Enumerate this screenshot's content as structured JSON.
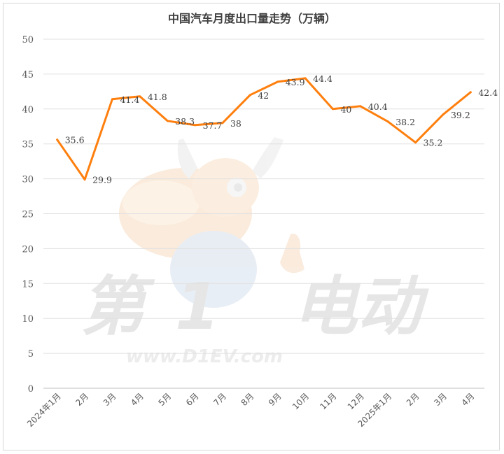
{
  "watermark": {
    "brand_chars": [
      "第",
      "1",
      "电动"
    ],
    "url": "www.D1EV.com"
  },
  "chart_data": {
    "type": "line",
    "title": "中国汽车月度出口量走势（万辆）",
    "categories": [
      "2024年1月",
      "2月",
      "3月",
      "4月",
      "5月",
      "6月",
      "7月",
      "8月",
      "9月",
      "10月",
      "11月",
      "12月",
      "2025年1月",
      "2月",
      "3月",
      "4月"
    ],
    "series": [
      {
        "values": [
          35.6,
          29.9,
          41.4,
          41.8,
          38.3,
          37.7,
          38,
          42,
          43.9,
          44.4,
          40,
          40.4,
          38.2,
          35.2,
          39.2,
          42.4
        ],
        "labels": [
          "35.6",
          "29.9",
          "41.4",
          "41.8",
          "38.3",
          "37.7",
          "38",
          "42",
          "43.9",
          "44.4",
          "40",
          "40.4",
          "38.2",
          "35.2",
          "39.2",
          "42.4"
        ],
        "color": "#ff7f0e"
      }
    ],
    "ylim": [
      0,
      50
    ],
    "yticks": [
      "0",
      "5",
      "10",
      "15",
      "20",
      "25",
      "30",
      "35",
      "40",
      "45",
      "50"
    ],
    "grid": true,
    "legend": "none",
    "colors": {
      "line": "#ff7f0e",
      "grid": "#e0e0e0",
      "axis": "#bfbfbf"
    }
  }
}
